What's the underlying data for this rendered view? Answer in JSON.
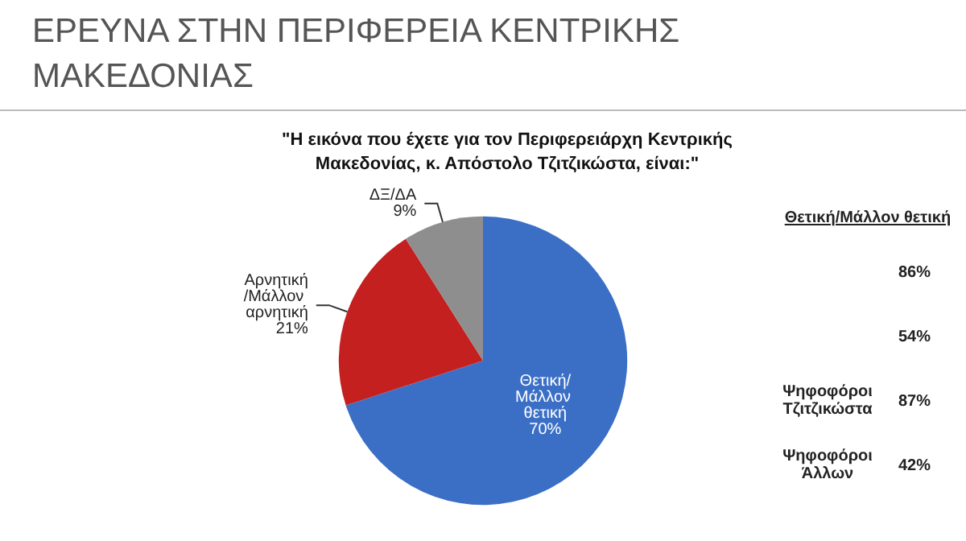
{
  "chart_data": [
    {
      "type": "pie",
      "title": "ΕΡΕΥΝΑ ΣΤΗΝ ΠΕΡΙΦΕΡΕΙΑ ΚΕΝΤΡΙΚΗΣ ΜΑΚΕΔΟΝΙΑΣ",
      "subtitle": "\"Η εικόνα που έχετε για τον Περιφερειάρχη Κεντρικής Μακεδονίας, κ. Απόστολο Τζιτζικώστα, είναι:\"",
      "categories": [
        "Θετική/Μάλλον θετική",
        "Αρνητική/Μάλλον αρνητική",
        "ΔΞ/ΔΑ"
      ],
      "values": [
        70,
        21,
        9
      ],
      "value_labels": [
        "70%",
        "21%",
        "9%"
      ],
      "colors": [
        "#3b6fc6",
        "#c3201f",
        "#8e8e8e"
      ]
    },
    {
      "type": "other",
      "title": "Θετική/Μάλλον θετική",
      "categories": [
        null,
        null,
        "Ψηφοφόροι Τζιτζικώστα",
        "Ψηφοφόροι Άλλων"
      ],
      "values": [
        86,
        54,
        87,
        42
      ],
      "value_labels": [
        "86%",
        "54%",
        "87%",
        "42%"
      ]
    }
  ]
}
